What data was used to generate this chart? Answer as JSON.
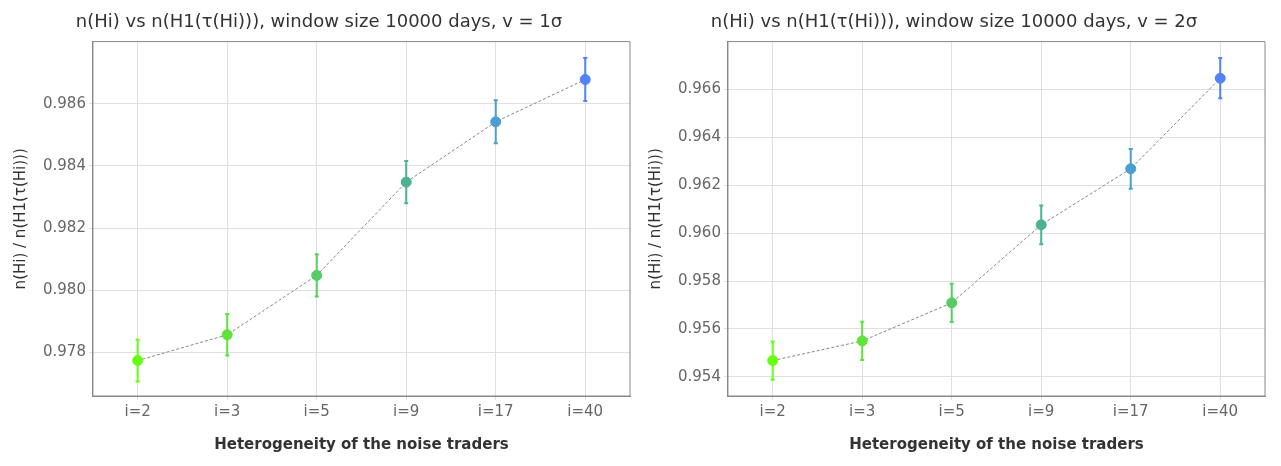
{
  "chart_data": [
    {
      "type": "line",
      "title": "n(Hi) vs n(H1(τ(Hi))), window size 10000 days, v = 1σ",
      "xlabel": "Heterogeneity of the noise traders",
      "ylabel": "n(Hi) / n(H1(τ(Hi)))",
      "categories": [
        "i=2",
        "i=3",
        "i=5",
        "i=9",
        "i=17",
        "i=40"
      ],
      "series": [
        {
          "color": "#888888",
          "colors": [
            "#66ff11",
            "#5fe33b",
            "#55cc66",
            "#4cb390",
            "#4a9fd0",
            "#4f83f7"
          ],
          "values": [
            0.97774,
            0.97857,
            0.98048,
            0.98348,
            0.98542,
            0.98678
          ],
          "errors": [
            0.00067,
            0.00067,
            0.00068,
            0.00068,
            0.00069,
            0.00069
          ]
        }
      ],
      "ylim": [
        0.9766,
        0.988
      ],
      "yticks": [
        0.978,
        {
          "value": 0.98,
          "label": "0.980"
        },
        0.982,
        0.984,
        0.986
      ],
      "grid": true,
      "marker": "circle",
      "line_style": "dashed",
      "legend": false
    },
    {
      "type": "line",
      "title": "n(Hi) vs n(H1(τ(Hi))), window size 10000 days, v = 2σ",
      "xlabel": "Heterogeneity of the noise traders",
      "ylabel": "n(Hi) / n(H1(τ(Hi)))",
      "categories": [
        "i=2",
        "i=3",
        "i=5",
        "i=9",
        "i=17",
        "i=40"
      ],
      "series": [
        {
          "color": "#888888",
          "colors": [
            "#66ff11",
            "#5fe33b",
            "#55cc66",
            "#4cb390",
            "#4a9fd0",
            "#4f83f7"
          ],
          "values": [
            0.95468,
            0.9555,
            0.95709,
            0.96035,
            0.96269,
            0.96647
          ],
          "errors": [
            0.0008,
            0.0008,
            0.0008,
            0.00081,
            0.00083,
            0.00084
          ]
        }
      ],
      "ylim": [
        0.9532,
        0.968
      ],
      "yticks": [
        0.954,
        0.956,
        0.958,
        {
          "value": 0.96,
          "label": "0.960"
        },
        0.962,
        0.964,
        0.966
      ],
      "grid": true,
      "marker": "circle",
      "line_style": "dashed",
      "legend": false
    }
  ]
}
